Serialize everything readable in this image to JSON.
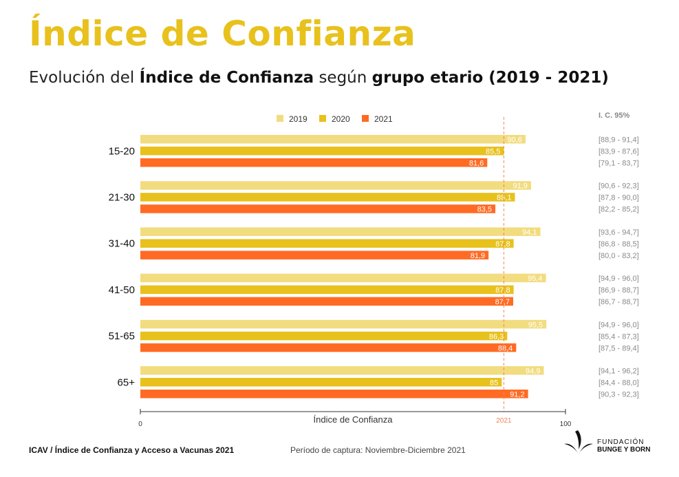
{
  "header": {
    "title": "Índice de Confianza",
    "subtitle_part1": "Evolución del ",
    "subtitle_bold1": "Índice de Confianza",
    "subtitle_part2": " según ",
    "subtitle_bold2": "grupo etario (2019 - 2021)"
  },
  "colors": {
    "2019": "#F2DC80",
    "2020": "#E8C11C",
    "2021": "#FF6B24",
    "title": "#E8C11C",
    "refline": "#F0865A"
  },
  "chart_data": {
    "type": "bar",
    "orientation": "horizontal",
    "categories": [
      "15-20",
      "21-30",
      "31-40",
      "41-50",
      "51-65",
      "65+"
    ],
    "series": [
      {
        "name": "2019",
        "values": [
          90.6,
          91.9,
          94.1,
          95.4,
          95.5,
          94.9
        ],
        "labels": [
          "90,6",
          "91,9",
          "94,1",
          "95,4",
          "95,5",
          "94,9"
        ],
        "ci": [
          "[88,9 - 91,4]",
          "[90,6 - 92,3]",
          "[93,6 - 94,7]",
          "[94,9 - 96,0]",
          "[94,9 - 96,0]",
          "[94,1 - 96,2]"
        ]
      },
      {
        "name": "2020",
        "values": [
          85.5,
          88.1,
          87.8,
          87.8,
          86.3,
          85
        ],
        "labels": [
          "85,5",
          "88,1",
          "87,8",
          "87,8",
          "86,3",
          "85"
        ],
        "ci": [
          "[83,9 - 87,6]",
          "[87,8 - 90,0]",
          "[86,8 - 88,5]",
          "[86,9 - 88,7]",
          "[85,4 - 87,3]",
          "[84,4 - 88,0]"
        ]
      },
      {
        "name": "2021",
        "values": [
          81.6,
          83.5,
          81.9,
          87.7,
          88.4,
          91.2
        ],
        "labels": [
          "81,6",
          "83,5",
          "81,9",
          "87,7",
          "88,4",
          "91,2"
        ],
        "ci": [
          "[79,1 - 83,7]",
          "[82,2 - 85,2]",
          "[80,0 - 83,2]",
          "[86,7 - 88,7]",
          "[87,5 - 89,4]",
          "[90,3 - 92,3]"
        ]
      }
    ],
    "xlim": [
      0,
      100
    ],
    "xlabel": "Índice de Confianza",
    "ylabel": "",
    "tick_labels": [
      "0",
      "100"
    ],
    "reference_line": {
      "value": 85.5,
      "label": "2021"
    },
    "ci_header": "I. C. 95%",
    "legend": {
      "position": "top",
      "entries": [
        "2019",
        "2020",
        "2021"
      ]
    },
    "grid": false
  },
  "footer": {
    "source": "ICAV / Índice de Confianza y Acceso a Vacunas 2021",
    "period": "Período de captura: Noviembre-Diciembre 2021"
  },
  "logo": {
    "line1": "FUNDACIÓN",
    "line2": "BUNGE Y BORN",
    "icon": "leaf-logo-icon"
  }
}
